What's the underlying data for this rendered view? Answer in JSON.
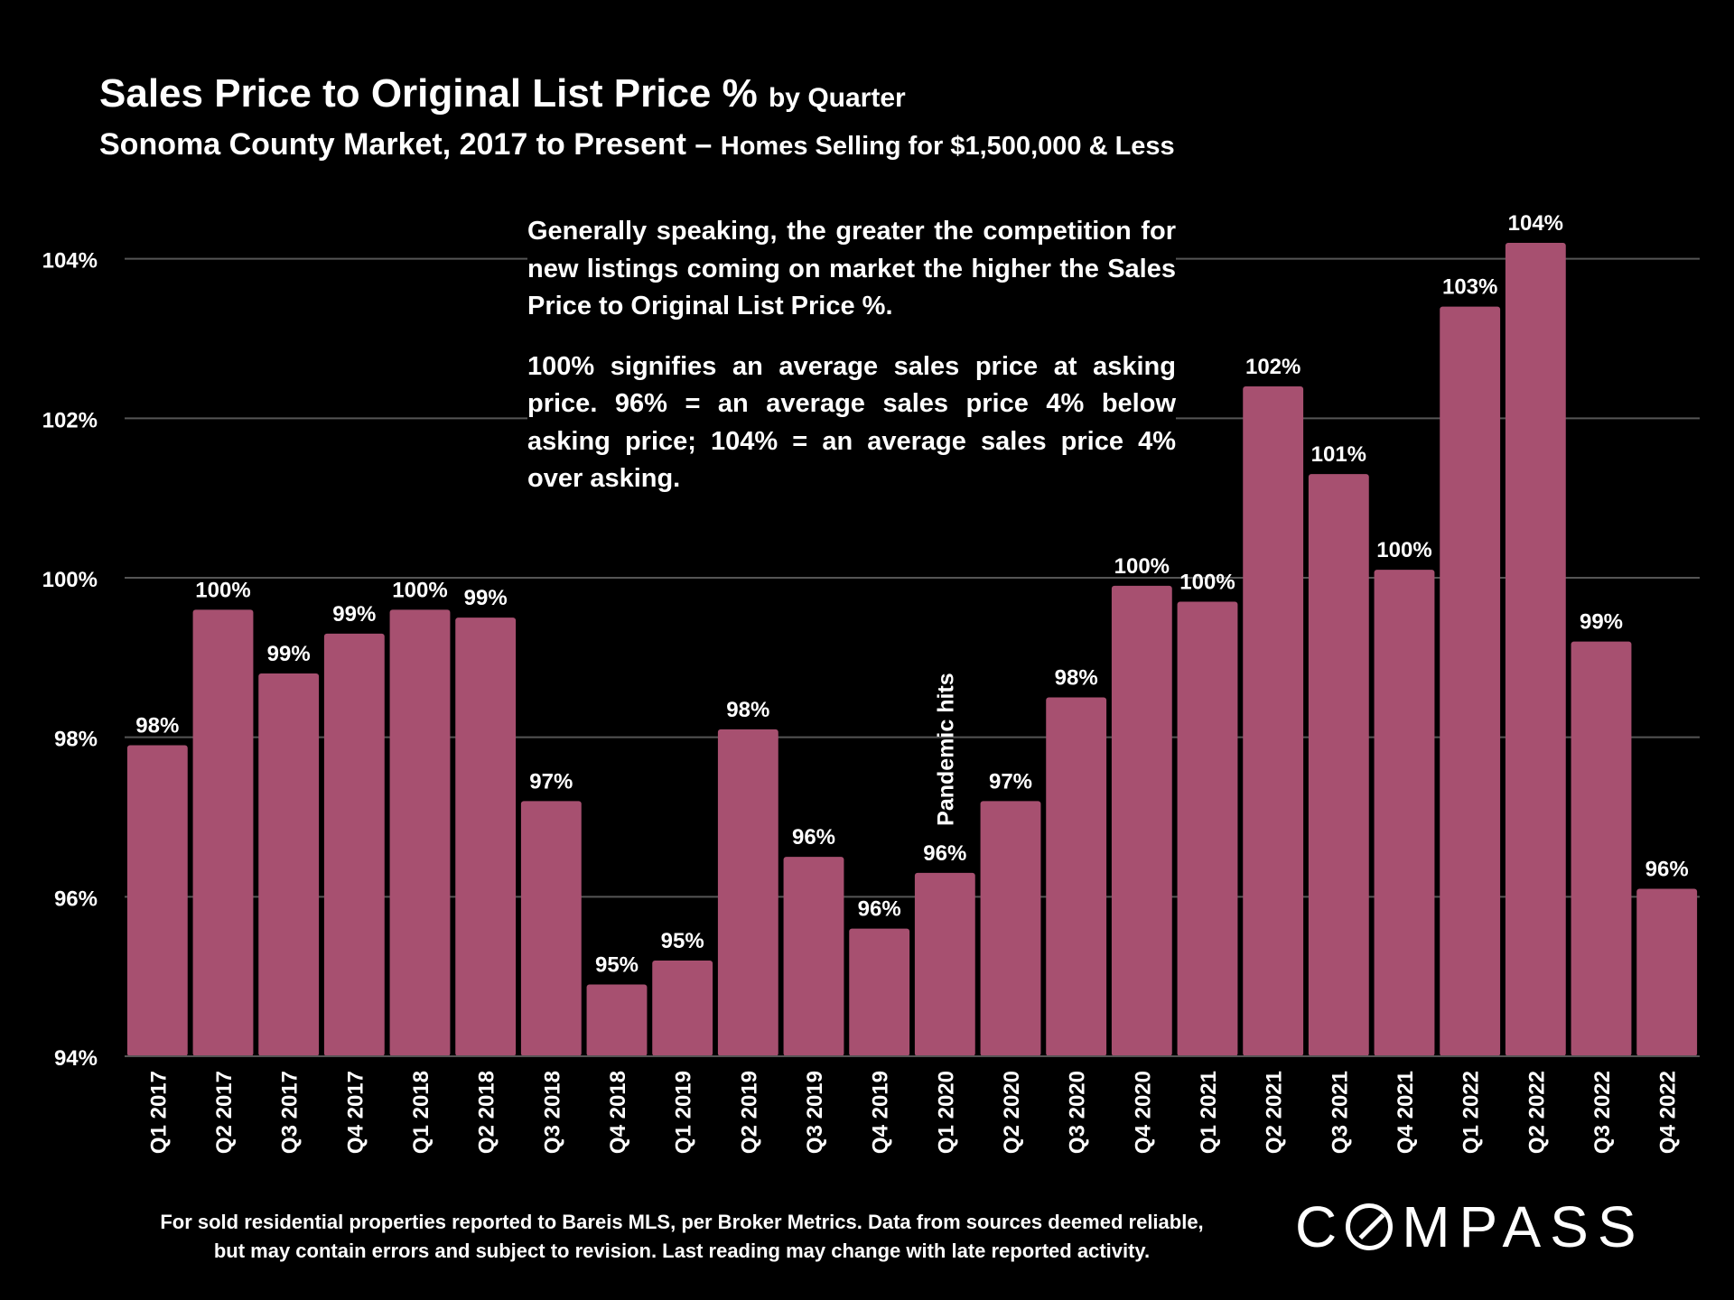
{
  "title": {
    "main": "Sales Price to Original List Price %",
    "main_suffix": "by Quarter",
    "sub": "Sonoma County Market, 2017 to Present –",
    "sub_suffix": "Homes Selling for $1,500,000 & Less"
  },
  "note": {
    "p1": "Generally speaking, the greater the competition for new listings coming on market the higher the Sales Price to Original List Price %.",
    "p2": "100% signifies an average sales price at asking price. 96% = an average sales price 4% below asking price; 104% = an average sales price 4% over asking."
  },
  "footer": {
    "line1": "For sold residential properties reported to Bareis MLS, per Broker Metrics. Data from sources deemed reliable,",
    "line2": "but may contain errors and subject to revision. Last reading may change with late reported activity."
  },
  "logo": {
    "text_before": "C",
    "text_after": "MPASS"
  },
  "colors": {
    "bar": "#A75070",
    "background": "#000000",
    "grid": "#555555",
    "text": "#FFFFFF"
  },
  "chart_data": {
    "type": "bar",
    "categories": [
      "Q1 2017",
      "Q2 2017",
      "Q3 2017",
      "Q4 2017",
      "Q1 2018",
      "Q2 2018",
      "Q3 2018",
      "Q4 2018",
      "Q1 2019",
      "Q2 2019",
      "Q3 2019",
      "Q4 2019",
      "Q1 2020",
      "Q2 2020",
      "Q3 2020",
      "Q4 2020",
      "Q1 2021",
      "Q2 2021",
      "Q3 2021",
      "Q4 2021",
      "Q1 2022",
      "Q2 2022",
      "Q3 2022",
      "Q4 2022"
    ],
    "values": [
      97.9,
      99.6,
      98.8,
      99.3,
      99.6,
      99.5,
      97.2,
      94.9,
      95.2,
      98.1,
      96.5,
      95.6,
      96.3,
      97.2,
      98.5,
      99.9,
      99.7,
      102.4,
      101.3,
      100.1,
      103.4,
      104.2,
      99.2,
      96.1
    ],
    "data_labels": [
      "98%",
      "100%",
      "99%",
      "99%",
      "100%",
      "99%",
      "97%",
      "95%",
      "95%",
      "98%",
      "96%",
      "96%",
      "96%",
      "97%",
      "98%",
      "100%",
      "100%",
      "102%",
      "101%",
      "100%",
      "103%",
      "104%",
      "99%",
      "96%"
    ],
    "yticks": [
      94,
      96,
      98,
      100,
      102,
      104
    ],
    "ytick_labels": [
      "94%",
      "96%",
      "98%",
      "100%",
      "102%",
      "104%"
    ],
    "ylim": [
      94,
      104.8
    ],
    "grid": true,
    "annotations": [
      {
        "category": "Q1 2020",
        "text": "Pandemic hits"
      }
    ]
  }
}
